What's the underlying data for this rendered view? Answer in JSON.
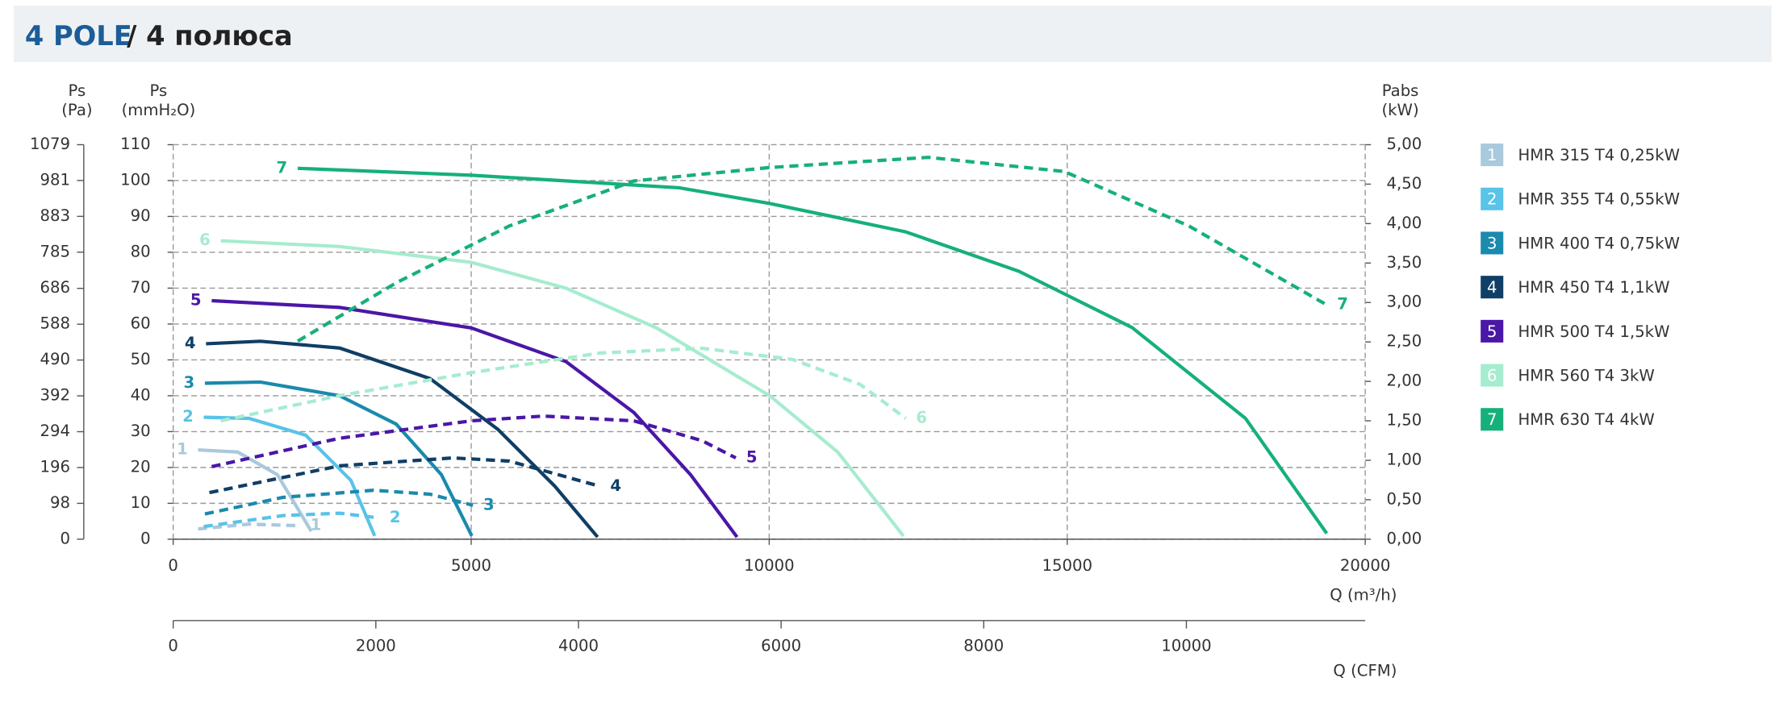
{
  "chart_data": {
    "type": "line",
    "title": "4 POLE",
    "subtitle": "/ 4 полюса",
    "y_label": [
      "Ps",
      "(mmH₂O)"
    ],
    "pa_label": [
      "Ps",
      "(Pa)"
    ],
    "y2_label": [
      "Pabs",
      "(kW)"
    ],
    "x_label": "Q (m³/h)",
    "x2_label": "Q (CFM)",
    "xlim": [
      0,
      20000
    ],
    "xticks": [
      0,
      5000,
      10000,
      15000,
      20000
    ],
    "ylim": [
      0,
      110
    ],
    "yticks": [
      0,
      10,
      20,
      30,
      40,
      50,
      60,
      70,
      80,
      90,
      100,
      110
    ],
    "pa_ylim": [
      0,
      1079
    ],
    "pa_yticks": [
      0,
      98,
      196,
      294,
      392,
      490,
      588,
      686,
      785,
      883,
      981,
      1079
    ],
    "y2lim": [
      0,
      5
    ],
    "y2ticks": [
      {
        "value": 0,
        "label": "0,00"
      },
      {
        "value": 0.5,
        "label": "0,50"
      },
      {
        "value": 1,
        "label": "1,00"
      },
      {
        "value": 1.5,
        "label": "1,50"
      },
      {
        "value": 2,
        "label": "2,00"
      },
      {
        "value": 2.5,
        "label": "2,50"
      },
      {
        "value": 3,
        "label": "3,00"
      },
      {
        "value": 3.5,
        "label": "3,50"
      },
      {
        "value": 4,
        "label": "4,00"
      },
      {
        "value": 4.5,
        "label": "4,50"
      },
      {
        "value": 5,
        "label": "5,00"
      }
    ],
    "x2lim": [
      0,
      11765
    ],
    "x2ticks": [
      0,
      2000,
      4000,
      6000,
      8000,
      10000
    ],
    "grid": true,
    "series": [
      {
        "name": "HMR 315 T4 0,25kW",
        "label": "1",
        "color": "#a9c9dc",
        "x": [
          418,
          1083,
          1747,
          2317
        ],
        "values": [
          24.9,
          24.3,
          18,
          2.2
        ]
      },
      {
        "name": "HMR 355 T4 0,55kW",
        "label": "2",
        "color": "#59c3e8",
        "x": [
          513,
          1272,
          2222,
          2982,
          3380
        ],
        "values": [
          34,
          33.7,
          29,
          16.4,
          0.9
        ]
      },
      {
        "name": "HMR 400 T4 0,75kW",
        "label": "3",
        "color": "#1a8aad",
        "x": [
          532,
          1462,
          2792,
          3742,
          4500,
          5010
        ],
        "values": [
          43.5,
          43.8,
          40,
          32.1,
          18,
          0.9
        ]
      },
      {
        "name": "HMR 450 T4 1,1kW",
        "label": "4",
        "color": "#0f3e66",
        "x": [
          551,
          1462,
          2792,
          4310,
          5450,
          6400,
          7120
        ],
        "values": [
          54.5,
          55.2,
          53.3,
          44.8,
          30.6,
          14.8,
          0.6
        ]
      },
      {
        "name": "HMR 500 T4 1,5kW",
        "label": "5",
        "color": "#4a17a6",
        "x": [
          646,
          2792,
          5000,
          6590,
          7730,
          8680,
          9460
        ],
        "values": [
          66.5,
          64.6,
          58.9,
          49.5,
          35.3,
          18,
          0.6
        ]
      },
      {
        "name": "HMR 560 T4 3kW",
        "label": "6",
        "color": "#a6eccf",
        "x": [
          798,
          2792,
          5000,
          6590,
          8110,
          10010,
          11150,
          12250
        ],
        "values": [
          83.2,
          81.6,
          77.2,
          70,
          58.9,
          40,
          24.3,
          0.9
        ]
      },
      {
        "name": "HMR 630 T4 4kW",
        "label": "7",
        "color": "#16b07a",
        "x": [
          2089,
          5000,
          8490,
          10010,
          12290,
          14190,
          16090,
          17990,
          19355
        ],
        "values": [
          103.4,
          101.5,
          98,
          93.6,
          85.7,
          74.7,
          59,
          33.7,
          1.6
        ]
      },
      {
        "label": "1",
        "color": "#a9c9dc",
        "axis": "y2",
        "line_style": "dashed",
        "x": [
          418,
          1272,
          2127
        ],
        "values": [
          0.13,
          0.19,
          0.17
        ]
      },
      {
        "label": "2",
        "color": "#59c3e8",
        "axis": "y2",
        "line_style": "dashed",
        "x": [
          513,
          1842,
          2792,
          3457
        ],
        "values": [
          0.16,
          0.3,
          0.33,
          0.27
        ]
      },
      {
        "label": "3",
        "color": "#1a8aad",
        "axis": "y2",
        "line_style": "dashed",
        "x": [
          532,
          1842,
          3362,
          4310,
          5030
        ],
        "values": [
          0.32,
          0.53,
          0.62,
          0.57,
          0.43
        ]
      },
      {
        "label": "4",
        "color": "#0f3e66",
        "axis": "y2",
        "line_style": "dashed",
        "x": [
          608,
          2792,
          4690,
          5640,
          7160
        ],
        "values": [
          0.59,
          0.93,
          1.03,
          0.99,
          0.67
        ]
      },
      {
        "label": "5",
        "color": "#4a17a6",
        "axis": "y2",
        "line_style": "dashed",
        "x": [
          646,
          2792,
          5000,
          6210,
          7730,
          8870,
          9440
        ],
        "values": [
          0.92,
          1.28,
          1.5,
          1.56,
          1.5,
          1.25,
          1.03
        ]
      },
      {
        "label": "6",
        "color": "#a6eccf",
        "axis": "y2",
        "line_style": "dashed",
        "x": [
          798,
          2792,
          5000,
          7160,
          8870,
          10390,
          11530,
          12290
        ],
        "values": [
          1.5,
          1.82,
          2.11,
          2.36,
          2.42,
          2.28,
          1.96,
          1.53
        ]
      },
      {
        "label": "7",
        "color": "#16b07a",
        "axis": "y2",
        "line_style": "dashed",
        "x": [
          2089,
          3742,
          5640,
          7730,
          10010,
          12670,
          14950,
          17040,
          19355
        ],
        "values": [
          2.51,
          3.25,
          3.97,
          4.54,
          4.71,
          4.84,
          4.66,
          3.97,
          2.97
        ]
      }
    ]
  }
}
